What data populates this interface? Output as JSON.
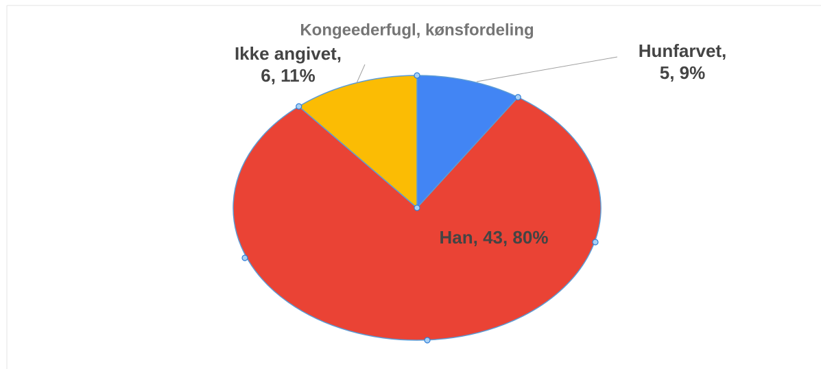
{
  "chart_data": {
    "type": "pie",
    "title": "Kongeederfugl, kønsfordeling",
    "values": [
      5,
      43,
      6
    ],
    "value_labels": [
      [
        "Hunfarvet,",
        "5, 9%"
      ],
      [
        "Han, 43, 80%"
      ],
      [
        "Ikke angivet,",
        "6, 11%"
      ]
    ],
    "colors": [
      "#4285f4",
      "#ea4335",
      "#fbbc04"
    ]
  }
}
